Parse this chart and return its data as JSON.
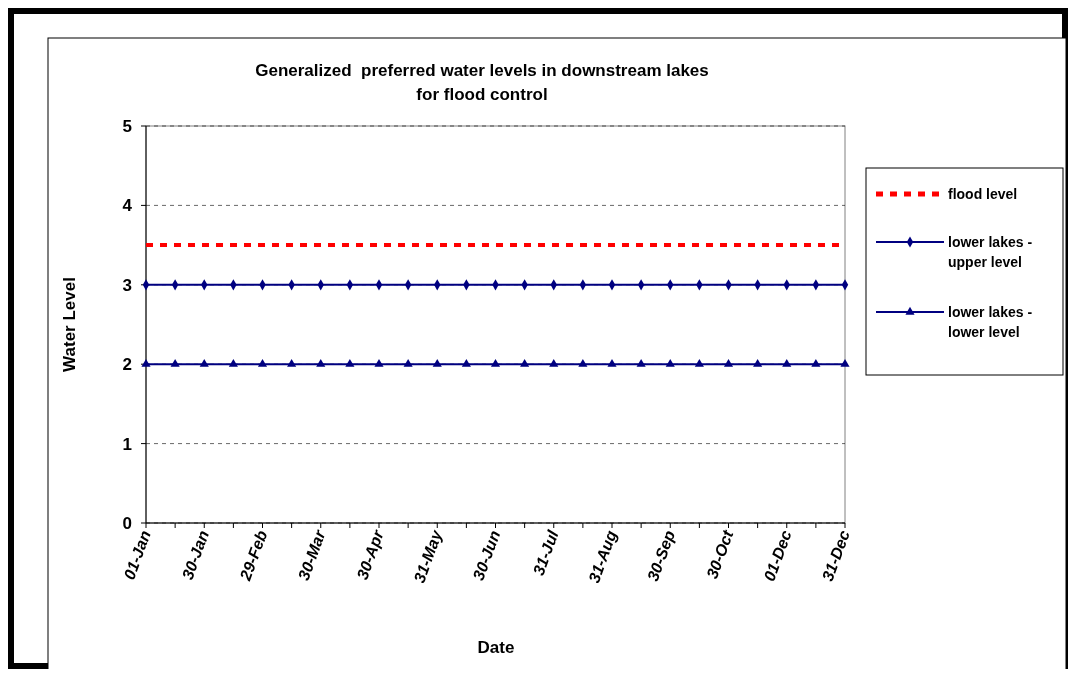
{
  "chart_data": {
    "type": "line",
    "title": "Generalized  preferred water levels in downstream lakes\nfor flood control",
    "xlabel": "Date",
    "ylabel": "Water Level",
    "categories": [
      "01-Jan",
      null,
      "30-Jan",
      null,
      "29-Feb",
      null,
      "30-Mar",
      null,
      "30-Apr",
      null,
      "31-May",
      null,
      "30-Jun",
      null,
      "31-Jul",
      null,
      "31-Aug",
      null,
      "30-Sep",
      null,
      "30-Oct",
      null,
      "01-Dec",
      null,
      "31-Dec"
    ],
    "series": [
      {
        "name": "flood level",
        "color": "#ff0000",
        "line_style": "dashed",
        "marker": "none",
        "values": [
          3.5,
          3.5,
          3.5,
          3.5,
          3.5,
          3.5,
          3.5,
          3.5,
          3.5,
          3.5,
          3.5,
          3.5,
          3.5,
          3.5,
          3.5,
          3.5,
          3.5,
          3.5,
          3.5,
          3.5,
          3.5,
          3.5,
          3.5,
          3.5,
          3.5
        ]
      },
      {
        "name": "lower lakes - upper level",
        "color": "#000080",
        "line_style": "solid",
        "marker": "diamond",
        "values": [
          3,
          3,
          3,
          3,
          3,
          3,
          3,
          3,
          3,
          3,
          3,
          3,
          3,
          3,
          3,
          3,
          3,
          3,
          3,
          3,
          3,
          3,
          3,
          3,
          3
        ]
      },
      {
        "name": "lower lakes - lower level",
        "color": "#000080",
        "line_style": "solid",
        "marker": "triangle",
        "values": [
          2,
          2,
          2,
          2,
          2,
          2,
          2,
          2,
          2,
          2,
          2,
          2,
          2,
          2,
          2,
          2,
          2,
          2,
          2,
          2,
          2,
          2,
          2,
          2,
          2
        ]
      }
    ],
    "ylim": [
      0,
      5
    ],
    "yticks": [
      0,
      1,
      2,
      3,
      4,
      5
    ],
    "grid": "y",
    "legend": "right"
  }
}
